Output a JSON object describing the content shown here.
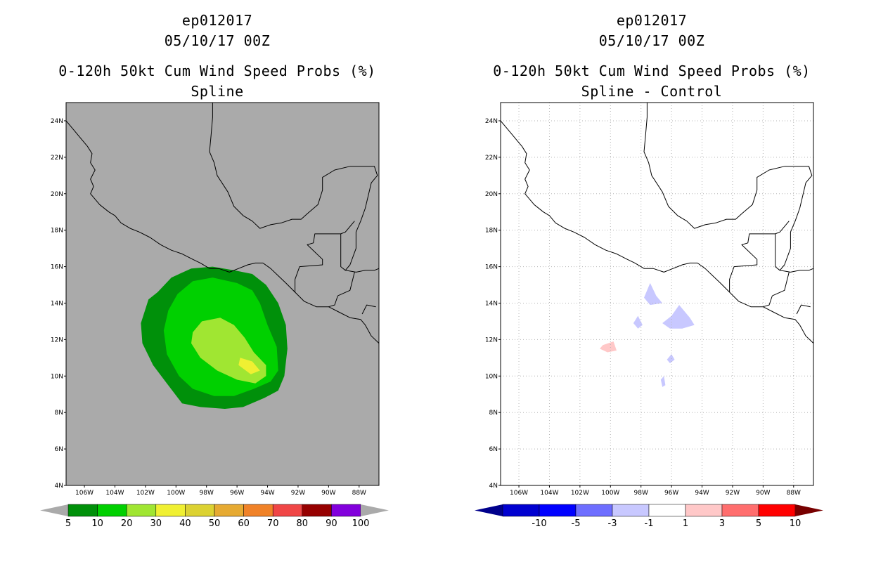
{
  "left_panel": {
    "storm_id": "ep012017",
    "datetime": "05/10/17 00Z",
    "product": "0-120h 50kt Cum Wind Speed Probs (%)",
    "subtitle": "Spline",
    "background_color": "#aaaaaa",
    "colorbar": {
      "labels": [
        "5",
        "10",
        "20",
        "30",
        "40",
        "50",
        "60",
        "70",
        "80",
        "90",
        "100"
      ],
      "colors": [
        "#00900a",
        "#00d000",
        "#a0e632",
        "#f0f032",
        "#dcd232",
        "#e6aa32",
        "#f08228",
        "#f04646",
        "#960000",
        "#8200dc"
      ],
      "end_color": "#aaaaaa"
    }
  },
  "right_panel": {
    "storm_id": "ep012017",
    "datetime": "05/10/17 00Z",
    "product": "0-120h 50kt Cum Wind Speed Probs (%)",
    "subtitle": "Spline - Control",
    "background_color": "#ffffff",
    "colorbar": {
      "labels": [
        "-10",
        "-5",
        "-3",
        "-1",
        "1",
        "3",
        "5",
        "10"
      ],
      "colors": [
        "#0000d0",
        "#0000ff",
        "#6e6eff",
        "#c8c8ff",
        "#ffffff",
        "#ffc8c8",
        "#ff6e6e",
        "#ff0000"
      ],
      "end_colors": [
        "#00008c",
        "#780000"
      ]
    }
  },
  "axes": {
    "lat_labels": [
      "24N",
      "22N",
      "20N",
      "18N",
      "16N",
      "14N",
      "12N",
      "10N",
      "8N",
      "6N",
      "4N"
    ],
    "lat_values": [
      24,
      22,
      20,
      18,
      16,
      14,
      12,
      10,
      8,
      6,
      4
    ],
    "lon_labels": [
      "106W",
      "104W",
      "102W",
      "100W",
      "98W",
      "96W",
      "94W",
      "92W",
      "90W",
      "88W"
    ],
    "lon_values": [
      -106,
      -104,
      -102,
      -100,
      -98,
      -96,
      -94,
      -92,
      -90,
      -88
    ],
    "lat_range": [
      4,
      25
    ],
    "lon_range": [
      -107.2,
      -86.7
    ]
  },
  "probability_field": {
    "levels": [
      5,
      10,
      20,
      30
    ],
    "colors": [
      "#00900a",
      "#00d000",
      "#a0e632",
      "#f0f032"
    ],
    "contours": [
      [
        [
          -101.8,
          14.2
        ],
        [
          -101.2,
          14.6
        ],
        [
          -100.3,
          15.4
        ],
        [
          -99.0,
          15.9
        ],
        [
          -97.6,
          16.0
        ],
        [
          -96.2,
          15.8
        ],
        [
          -95.0,
          15.6
        ],
        [
          -94.1,
          15.0
        ],
        [
          -93.3,
          14.0
        ],
        [
          -92.8,
          12.8
        ],
        [
          -92.7,
          11.5
        ],
        [
          -92.9,
          10.0
        ],
        [
          -93.3,
          9.2
        ],
        [
          -94.2,
          8.8
        ],
        [
          -95.6,
          8.3
        ],
        [
          -96.8,
          8.2
        ],
        [
          -98.4,
          8.3
        ],
        [
          -99.6,
          8.5
        ],
        [
          -100.6,
          9.6
        ],
        [
          -101.5,
          10.6
        ],
        [
          -102.2,
          11.8
        ],
        [
          -102.3,
          12.9
        ]
      ],
      [
        [
          -100.5,
          13.6
        ],
        [
          -99.9,
          14.5
        ],
        [
          -98.9,
          15.2
        ],
        [
          -97.6,
          15.4
        ],
        [
          -96.0,
          15.1
        ],
        [
          -95.0,
          14.7
        ],
        [
          -94.5,
          14.0
        ],
        [
          -94.0,
          12.8
        ],
        [
          -93.4,
          11.6
        ],
        [
          -93.3,
          10.3
        ],
        [
          -93.8,
          9.7
        ],
        [
          -94.9,
          9.3
        ],
        [
          -96.2,
          8.9
        ],
        [
          -97.5,
          8.9
        ],
        [
          -98.9,
          9.3
        ],
        [
          -99.8,
          10.0
        ],
        [
          -100.6,
          11.2
        ],
        [
          -100.8,
          12.5
        ]
      ],
      [
        [
          -98.9,
          12.4
        ],
        [
          -98.3,
          13.0
        ],
        [
          -97.1,
          13.2
        ],
        [
          -96.2,
          12.8
        ],
        [
          -95.5,
          12.1
        ],
        [
          -94.9,
          11.3
        ],
        [
          -94.1,
          10.6
        ],
        [
          -94.1,
          10.0
        ],
        [
          -94.8,
          9.6
        ],
        [
          -96.0,
          9.8
        ],
        [
          -97.3,
          10.3
        ],
        [
          -98.4,
          11.0
        ],
        [
          -99.0,
          11.8
        ]
      ],
      [
        [
          -95.8,
          11.0
        ],
        [
          -95.0,
          10.8
        ],
        [
          -94.5,
          10.3
        ],
        [
          -95.1,
          10.1
        ],
        [
          -95.9,
          10.6
        ]
      ]
    ]
  },
  "difference_field": {
    "negative_color": "#c8c8ff",
    "positive_color": "#ffc8c8",
    "negative_blobs": [
      [
        [
          -97.4,
          15.1
        ],
        [
          -97.0,
          14.4
        ],
        [
          -96.6,
          14.0
        ],
        [
          -97.4,
          13.9
        ],
        [
          -97.8,
          14.3
        ]
      ],
      [
        [
          -98.2,
          13.3
        ],
        [
          -97.9,
          12.8
        ],
        [
          -98.2,
          12.6
        ],
        [
          -98.5,
          12.9
        ]
      ],
      [
        [
          -95.5,
          13.9
        ],
        [
          -94.8,
          13.2
        ],
        [
          -94.5,
          12.8
        ],
        [
          -95.3,
          12.6
        ],
        [
          -96.1,
          12.6
        ],
        [
          -96.6,
          12.9
        ],
        [
          -96.0,
          13.3
        ]
      ],
      [
        [
          -96.0,
          11.2
        ],
        [
          -95.8,
          10.9
        ],
        [
          -96.1,
          10.7
        ],
        [
          -96.3,
          10.9
        ]
      ],
      [
        [
          -96.5,
          10.0
        ],
        [
          -96.4,
          9.5
        ],
        [
          -96.6,
          9.4
        ],
        [
          -96.7,
          9.8
        ]
      ]
    ],
    "positive_blobs": [
      [
        [
          -100.5,
          11.7
        ],
        [
          -99.8,
          11.9
        ],
        [
          -99.6,
          11.4
        ],
        [
          -100.2,
          11.3
        ],
        [
          -100.7,
          11.5
        ]
      ]
    ]
  },
  "coastline": [
    [
      [
        -107.2,
        24.0
      ],
      [
        -106.7,
        23.5
      ],
      [
        -106.2,
        23.0
      ],
      [
        -105.8,
        22.6
      ],
      [
        -105.5,
        22.2
      ],
      [
        -105.6,
        21.7
      ],
      [
        -105.3,
        21.3
      ],
      [
        -105.6,
        20.8
      ],
      [
        -105.4,
        20.4
      ],
      [
        -105.6,
        20.0
      ],
      [
        -105.0,
        19.4
      ],
      [
        -104.4,
        19.0
      ],
      [
        -104.0,
        18.8
      ],
      [
        -103.6,
        18.4
      ],
      [
        -103.0,
        18.1
      ],
      [
        -102.4,
        17.9
      ],
      [
        -101.7,
        17.6
      ],
      [
        -101.0,
        17.2
      ],
      [
        -100.3,
        16.9
      ],
      [
        -99.6,
        16.7
      ],
      [
        -98.9,
        16.4
      ],
      [
        -98.4,
        16.2
      ],
      [
        -97.8,
        15.9
      ],
      [
        -97.2,
        15.9
      ],
      [
        -96.5,
        15.7
      ],
      [
        -95.9,
        15.9
      ],
      [
        -95.3,
        16.1
      ],
      [
        -94.8,
        16.2
      ],
      [
        -94.3,
        16.2
      ],
      [
        -93.8,
        15.9
      ],
      [
        -93.3,
        15.5
      ],
      [
        -92.8,
        15.1
      ],
      [
        -92.2,
        14.6
      ],
      [
        -91.6,
        14.1
      ],
      [
        -90.8,
        13.8
      ],
      [
        -90.0,
        13.8
      ],
      [
        -89.3,
        13.5
      ],
      [
        -88.6,
        13.2
      ],
      [
        -87.9,
        13.1
      ],
      [
        -87.6,
        12.8
      ],
      [
        -87.2,
        12.2
      ],
      [
        -86.7,
        11.8
      ]
    ],
    [
      [
        -97.6,
        25.0
      ],
      [
        -97.6,
        24.2
      ],
      [
        -97.7,
        23.2
      ],
      [
        -97.8,
        22.3
      ],
      [
        -97.5,
        21.7
      ],
      [
        -97.3,
        21.0
      ],
      [
        -96.6,
        20.1
      ],
      [
        -96.2,
        19.3
      ],
      [
        -95.6,
        18.8
      ],
      [
        -95.0,
        18.5
      ],
      [
        -94.5,
        18.1
      ],
      [
        -93.8,
        18.3
      ],
      [
        -93.1,
        18.4
      ],
      [
        -92.4,
        18.6
      ],
      [
        -91.8,
        18.6
      ],
      [
        -91.4,
        18.9
      ],
      [
        -90.7,
        19.4
      ],
      [
        -90.4,
        20.2
      ],
      [
        -90.4,
        20.9
      ],
      [
        -89.6,
        21.3
      ],
      [
        -88.6,
        21.5
      ],
      [
        -87.6,
        21.5
      ],
      [
        -87.0,
        21.5
      ],
      [
        -86.8,
        21.0
      ],
      [
        -87.2,
        20.6
      ],
      [
        -87.4,
        19.9
      ],
      [
        -87.6,
        19.2
      ],
      [
        -87.9,
        18.5
      ],
      [
        -88.2,
        17.9
      ],
      [
        -88.2,
        17.0
      ],
      [
        -88.6,
        16.1
      ],
      [
        -88.9,
        15.8
      ],
      [
        -88.2,
        15.7
      ],
      [
        -87.6,
        15.8
      ],
      [
        -87.0,
        15.8
      ],
      [
        -86.7,
        15.9
      ]
    ]
  ],
  "borders": [
    [
      [
        -92.2,
        14.6
      ],
      [
        -92.2,
        15.3
      ],
      [
        -91.9,
        16.0
      ],
      [
        -90.4,
        16.1
      ],
      [
        -90.4,
        16.4
      ],
      [
        -91.4,
        17.2
      ],
      [
        -91.0,
        17.3
      ],
      [
        -90.9,
        17.8
      ],
      [
        -89.2,
        17.8
      ],
      [
        -89.2,
        16.0
      ],
      [
        -88.9,
        15.8
      ]
    ],
    [
      [
        -89.2,
        17.8
      ],
      [
        -88.9,
        17.9
      ],
      [
        -88.3,
        18.5
      ]
    ],
    [
      [
        -89.4,
        14.4
      ],
      [
        -88.6,
        14.7
      ],
      [
        -88.3,
        15.7
      ]
    ],
    [
      [
        -89.4,
        14.4
      ],
      [
        -89.6,
        13.9
      ],
      [
        -90.0,
        13.8
      ]
    ],
    [
      [
        -87.8,
        13.4
      ],
      [
        -87.5,
        13.9
      ],
      [
        -86.9,
        13.8
      ]
    ]
  ]
}
